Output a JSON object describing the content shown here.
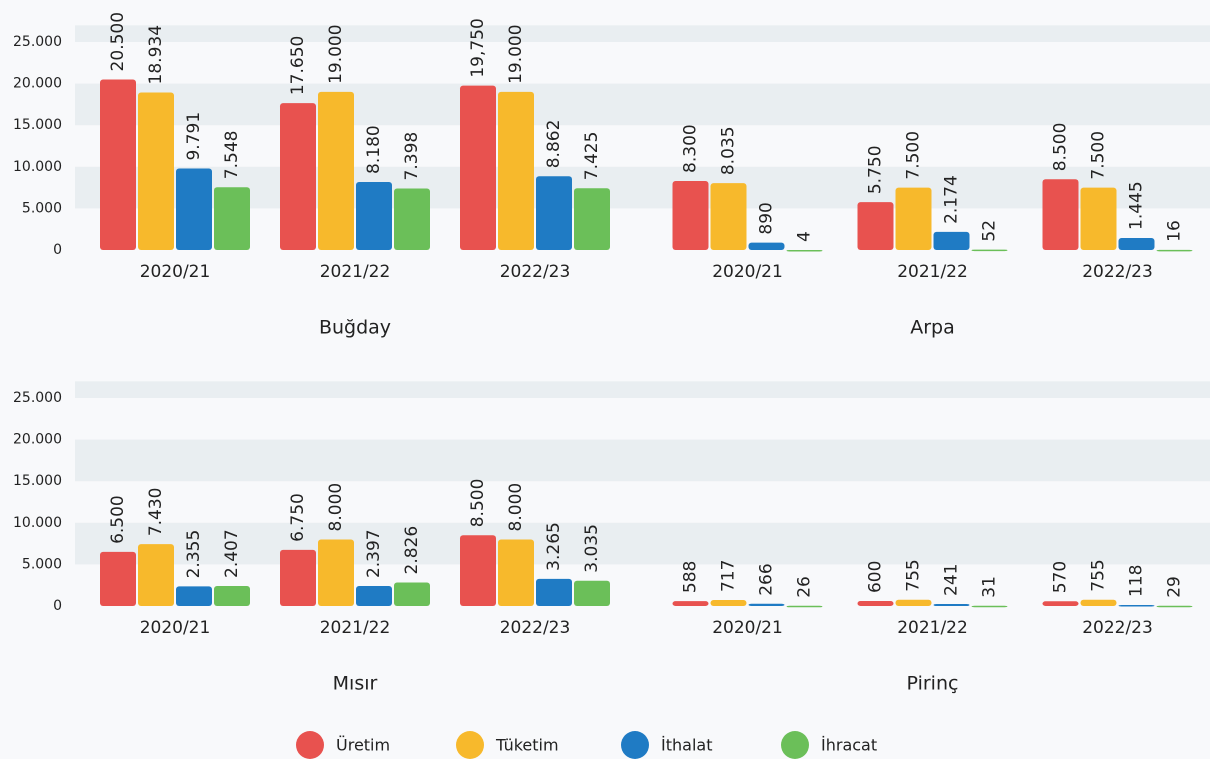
{
  "legend": [
    {
      "name": "Üretim",
      "color": "#e8524f"
    },
    {
      "name": "Tüketim",
      "color": "#f7b92c"
    },
    {
      "name": "İthalat",
      "color": "#1f7bc4"
    },
    {
      "name": "İhracat",
      "color": "#6bbf59"
    }
  ],
  "chart_data": [
    {
      "type": "bar",
      "title": "Buğday",
      "categories": [
        "2020/21",
        "2021/22",
        "2022/23"
      ],
      "ylim": [
        0,
        27000
      ],
      "yticks": [
        0,
        {
          "value": 5000,
          "label": "5.000"
        },
        {
          "value": 10000,
          "label": "10.000"
        },
        {
          "value": 15000,
          "label": "15.000"
        },
        {
          "value": 20000,
          "label": "20.000"
        },
        {
          "value": 25000,
          "label": "25.000"
        }
      ],
      "series": [
        {
          "values": [
            20500,
            17650,
            19750
          ],
          "value_labels": [
            "20.500",
            "17.650",
            "19,750"
          ]
        },
        {
          "values": [
            18934,
            19000,
            19000
          ],
          "value_labels": [
            "18.934",
            "19.000",
            "19.000"
          ]
        },
        {
          "values": [
            9791,
            8180,
            8862
          ],
          "value_labels": [
            "9.791",
            "8.180",
            "8.862"
          ]
        },
        {
          "values": [
            7548,
            7398,
            7425
          ],
          "value_labels": [
            "7.548",
            "7.398",
            "7.425"
          ]
        }
      ]
    },
    {
      "type": "bar",
      "title": "Arpa",
      "categories": [
        "2020/21",
        "2021/22",
        "2022/23"
      ],
      "ylim": [
        0,
        27000
      ],
      "yticks": [
        0,
        5000,
        10000,
        15000,
        20000,
        25000
      ],
      "series": [
        {
          "values": [
            8300,
            5750,
            8500
          ],
          "value_labels": [
            "8.300",
            "5.750",
            "8.500"
          ]
        },
        {
          "values": [
            8035,
            7500,
            7500
          ],
          "value_labels": [
            "8.035",
            "7.500",
            "7.500"
          ]
        },
        {
          "values": [
            890,
            2174,
            1445
          ],
          "value_labels": [
            "890",
            "2.174",
            "1.445"
          ]
        },
        {
          "values": [
            4,
            52,
            16
          ],
          "value_labels": [
            "4",
            "52",
            "16"
          ]
        }
      ]
    },
    {
      "type": "bar",
      "title": "Mısır",
      "categories": [
        "2020/21",
        "2021/22",
        "2022/23"
      ],
      "ylim": [
        0,
        27000
      ],
      "yticks": [
        0,
        {
          "value": 5000,
          "label": "5.000"
        },
        {
          "value": 10000,
          "label": "10.000"
        },
        {
          "value": 15000,
          "label": "15.000"
        },
        {
          "value": 20000,
          "label": "20.000"
        },
        {
          "value": 25000,
          "label": "25.000"
        }
      ],
      "series": [
        {
          "values": [
            6500,
            6750,
            8500
          ],
          "value_labels": [
            "6.500",
            "6.750",
            "8.500"
          ]
        },
        {
          "values": [
            7430,
            8000,
            8000
          ],
          "value_labels": [
            "7.430",
            "8.000",
            "8.000"
          ]
        },
        {
          "values": [
            2355,
            2397,
            3265
          ],
          "value_labels": [
            "2.355",
            "2.397",
            "3.265"
          ]
        },
        {
          "values": [
            2407,
            2826,
            3035
          ],
          "value_labels": [
            "2.407",
            "2.826",
            "3.035"
          ]
        }
      ]
    },
    {
      "type": "bar",
      "title": "Pirinç",
      "categories": [
        "2020/21",
        "2021/22",
        "2022/23"
      ],
      "ylim": [
        0,
        27000
      ],
      "yticks": [
        0,
        5000,
        10000,
        15000,
        20000,
        25000
      ],
      "series": [
        {
          "values": [
            588,
            600,
            570
          ]
        },
        {
          "values": [
            717,
            755,
            755
          ]
        },
        {
          "values": [
            266,
            241,
            118
          ]
        },
        {
          "values": [
            26,
            31,
            29
          ]
        }
      ]
    }
  ]
}
